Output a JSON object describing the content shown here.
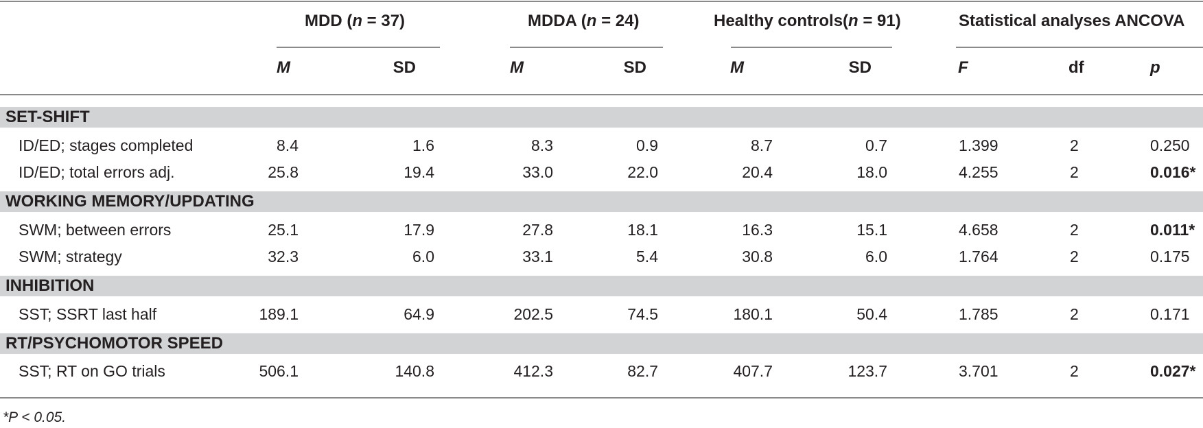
{
  "headers": {
    "groups": [
      {
        "name": "MDD (",
        "n_italic": "n",
        "n_rest": " = 37)"
      },
      {
        "name": "MDDA (",
        "n_italic": "n",
        "n_rest": " = 24)"
      },
      {
        "name": "Healthy controls(",
        "n_italic": "n",
        "n_rest": " = 91)"
      },
      {
        "name": "Statistical analyses ANCOVA",
        "n_italic": "",
        "n_rest": ""
      }
    ],
    "sub": [
      "M",
      "SD",
      "M",
      "SD",
      "M",
      "SD",
      "F",
      "df",
      "p"
    ]
  },
  "sections": [
    {
      "title": "SET-SHIFT",
      "rows": [
        {
          "label": "ID/ED; stages completed",
          "values": [
            "8.4",
            "1.6",
            "8.3",
            "0.9",
            "8.7",
            "0.7",
            "1.399",
            "2",
            "0.250"
          ],
          "p_bold": false
        },
        {
          "label": "ID/ED; total errors adj.",
          "values": [
            "25.8",
            "19.4",
            "33.0",
            "22.0",
            "20.4",
            "18.0",
            "4.255",
            "2",
            "0.016*"
          ],
          "p_bold": true
        }
      ]
    },
    {
      "title": "WORKING MEMORY/UPDATING",
      "rows": [
        {
          "label": "SWM; between errors",
          "values": [
            "25.1",
            "17.9",
            "27.8",
            "18.1",
            "16.3",
            "15.1",
            "4.658",
            "2",
            "0.011*"
          ],
          "p_bold": true
        },
        {
          "label": "SWM; strategy",
          "values": [
            "32.3",
            "6.0",
            "33.1",
            "5.4",
            "30.8",
            "6.0",
            "1.764",
            "2",
            "0.175"
          ],
          "p_bold": false
        }
      ]
    },
    {
      "title": "INHIBITION",
      "rows": [
        {
          "label": "SST; SSRT last half",
          "values": [
            "189.1",
            "64.9",
            "202.5",
            "74.5",
            "180.1",
            "50.4",
            "1.785",
            "2",
            "0.171"
          ],
          "p_bold": false
        }
      ]
    },
    {
      "title": "RT/PSYCHOMOTOR SPEED",
      "rows": [
        {
          "label": "SST; RT on GO trials",
          "values": [
            "506.1",
            "140.8",
            "412.3",
            "82.7",
            "407.7",
            "123.7",
            "3.701",
            "2",
            "0.027*"
          ],
          "p_bold": true
        }
      ]
    }
  ],
  "footnote": "*P < 0.05."
}
